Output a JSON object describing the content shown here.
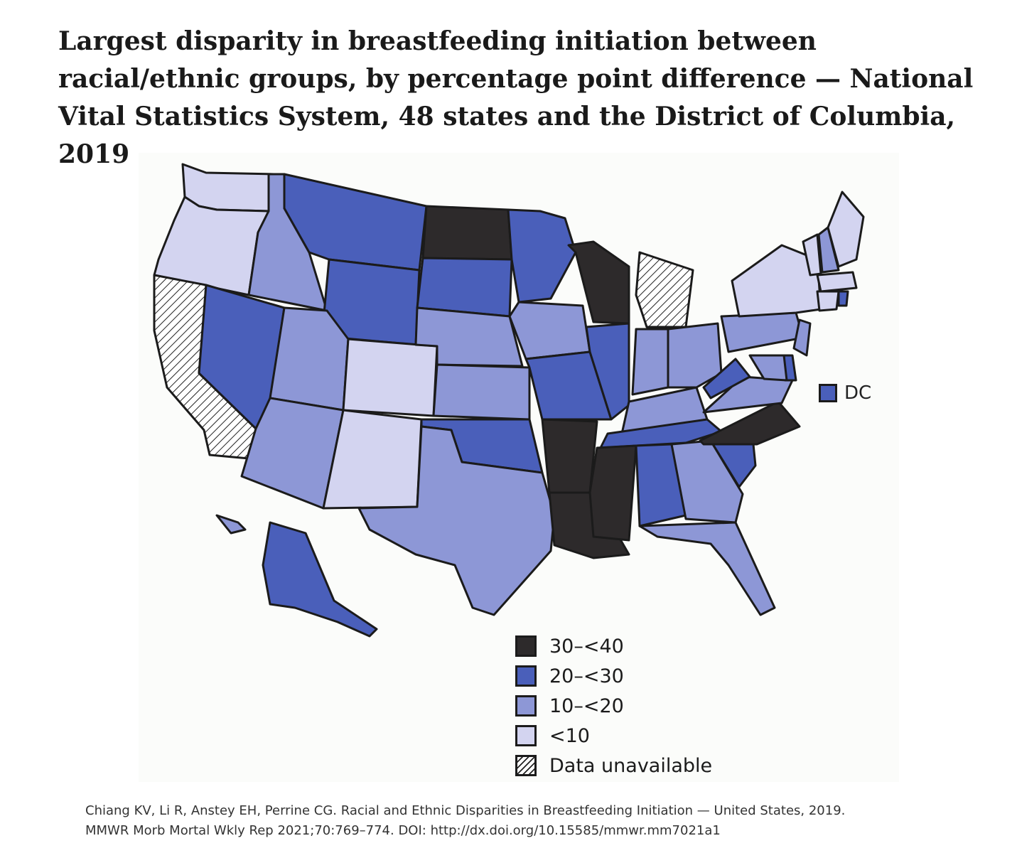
{
  "title": "Largest disparity in breastfeeding initiation between racial/ethnic groups, by percentage point difference — National Vital Statistics System, 48 states and the District of Columbia, 2019",
  "colors": {
    "c30_40": "#2d2a2b",
    "c20_30": "#4a5fba",
    "c10_20": "#8d97d6",
    "c0_10": "#d3d4f0",
    "na_hatch": "#ffffff",
    "border": "#1b1b1b"
  },
  "legend": [
    {
      "key": "c30_40",
      "label": "30–<40"
    },
    {
      "key": "c20_30",
      "label": "20–<30"
    },
    {
      "key": "c10_20",
      "label": "10–<20"
    },
    {
      "key": "c0_10",
      "label": "<10"
    },
    {
      "key": "na",
      "label": "Data unavailable"
    }
  ],
  "dc": {
    "label": "DC",
    "category": "c20_30"
  },
  "states": [
    {
      "id": "WA",
      "category": "c0_10"
    },
    {
      "id": "OR",
      "category": "c0_10"
    },
    {
      "id": "CA",
      "category": "na"
    },
    {
      "id": "ID",
      "category": "c10_20"
    },
    {
      "id": "NV",
      "category": "c20_30"
    },
    {
      "id": "MT",
      "category": "c20_30"
    },
    {
      "id": "WY",
      "category": "c20_30"
    },
    {
      "id": "UT",
      "category": "c10_20"
    },
    {
      "id": "AZ",
      "category": "c10_20"
    },
    {
      "id": "CO",
      "category": "c0_10"
    },
    {
      "id": "NM",
      "category": "c0_10"
    },
    {
      "id": "ND",
      "category": "c30_40"
    },
    {
      "id": "SD",
      "category": "c20_30"
    },
    {
      "id": "NE",
      "category": "c10_20"
    },
    {
      "id": "KS",
      "category": "c10_20"
    },
    {
      "id": "OK",
      "category": "c20_30"
    },
    {
      "id": "TX",
      "category": "c10_20"
    },
    {
      "id": "MN",
      "category": "c20_30"
    },
    {
      "id": "IA",
      "category": "c10_20"
    },
    {
      "id": "MO",
      "category": "c20_30"
    },
    {
      "id": "AR",
      "category": "c30_40"
    },
    {
      "id": "LA",
      "category": "c30_40"
    },
    {
      "id": "WI",
      "category": "c30_40"
    },
    {
      "id": "IL",
      "category": "c20_30"
    },
    {
      "id": "MI",
      "category": "na"
    },
    {
      "id": "IN",
      "category": "c10_20"
    },
    {
      "id": "OH",
      "category": "c10_20"
    },
    {
      "id": "KY",
      "category": "c10_20"
    },
    {
      "id": "TN",
      "category": "c20_30"
    },
    {
      "id": "MS",
      "category": "c30_40"
    },
    {
      "id": "AL",
      "category": "c20_30"
    },
    {
      "id": "GA",
      "category": "c10_20"
    },
    {
      "id": "FL",
      "category": "c10_20"
    },
    {
      "id": "SC",
      "category": "c20_30"
    },
    {
      "id": "NC",
      "category": "c30_40"
    },
    {
      "id": "VA",
      "category": "c10_20"
    },
    {
      "id": "WV",
      "category": "c20_30"
    },
    {
      "id": "PA",
      "category": "c10_20"
    },
    {
      "id": "NY",
      "category": "c0_10"
    },
    {
      "id": "NJ",
      "category": "c10_20"
    },
    {
      "id": "DE",
      "category": "c20_30"
    },
    {
      "id": "MD",
      "category": "c10_20"
    },
    {
      "id": "VT",
      "category": "c0_10"
    },
    {
      "id": "NH",
      "category": "c10_20"
    },
    {
      "id": "ME",
      "category": "c0_10"
    },
    {
      "id": "MA",
      "category": "c0_10"
    },
    {
      "id": "CT",
      "category": "c0_10"
    },
    {
      "id": "RI",
      "category": "c20_30"
    },
    {
      "id": "AK",
      "category": "c20_30"
    },
    {
      "id": "HI",
      "category": "c10_20"
    }
  ],
  "citation": {
    "line1": "Chiang KV, Li R, Anstey EH, Perrine CG. Racial and Ethnic Disparities in Breastfeeding Initiation — United States, 2019.",
    "line2": "MMWR Morb Mortal Wkly Rep 2021;70:769–774. DOI: http://dx.doi.org/10.15585/mmwr.mm7021a1"
  }
}
